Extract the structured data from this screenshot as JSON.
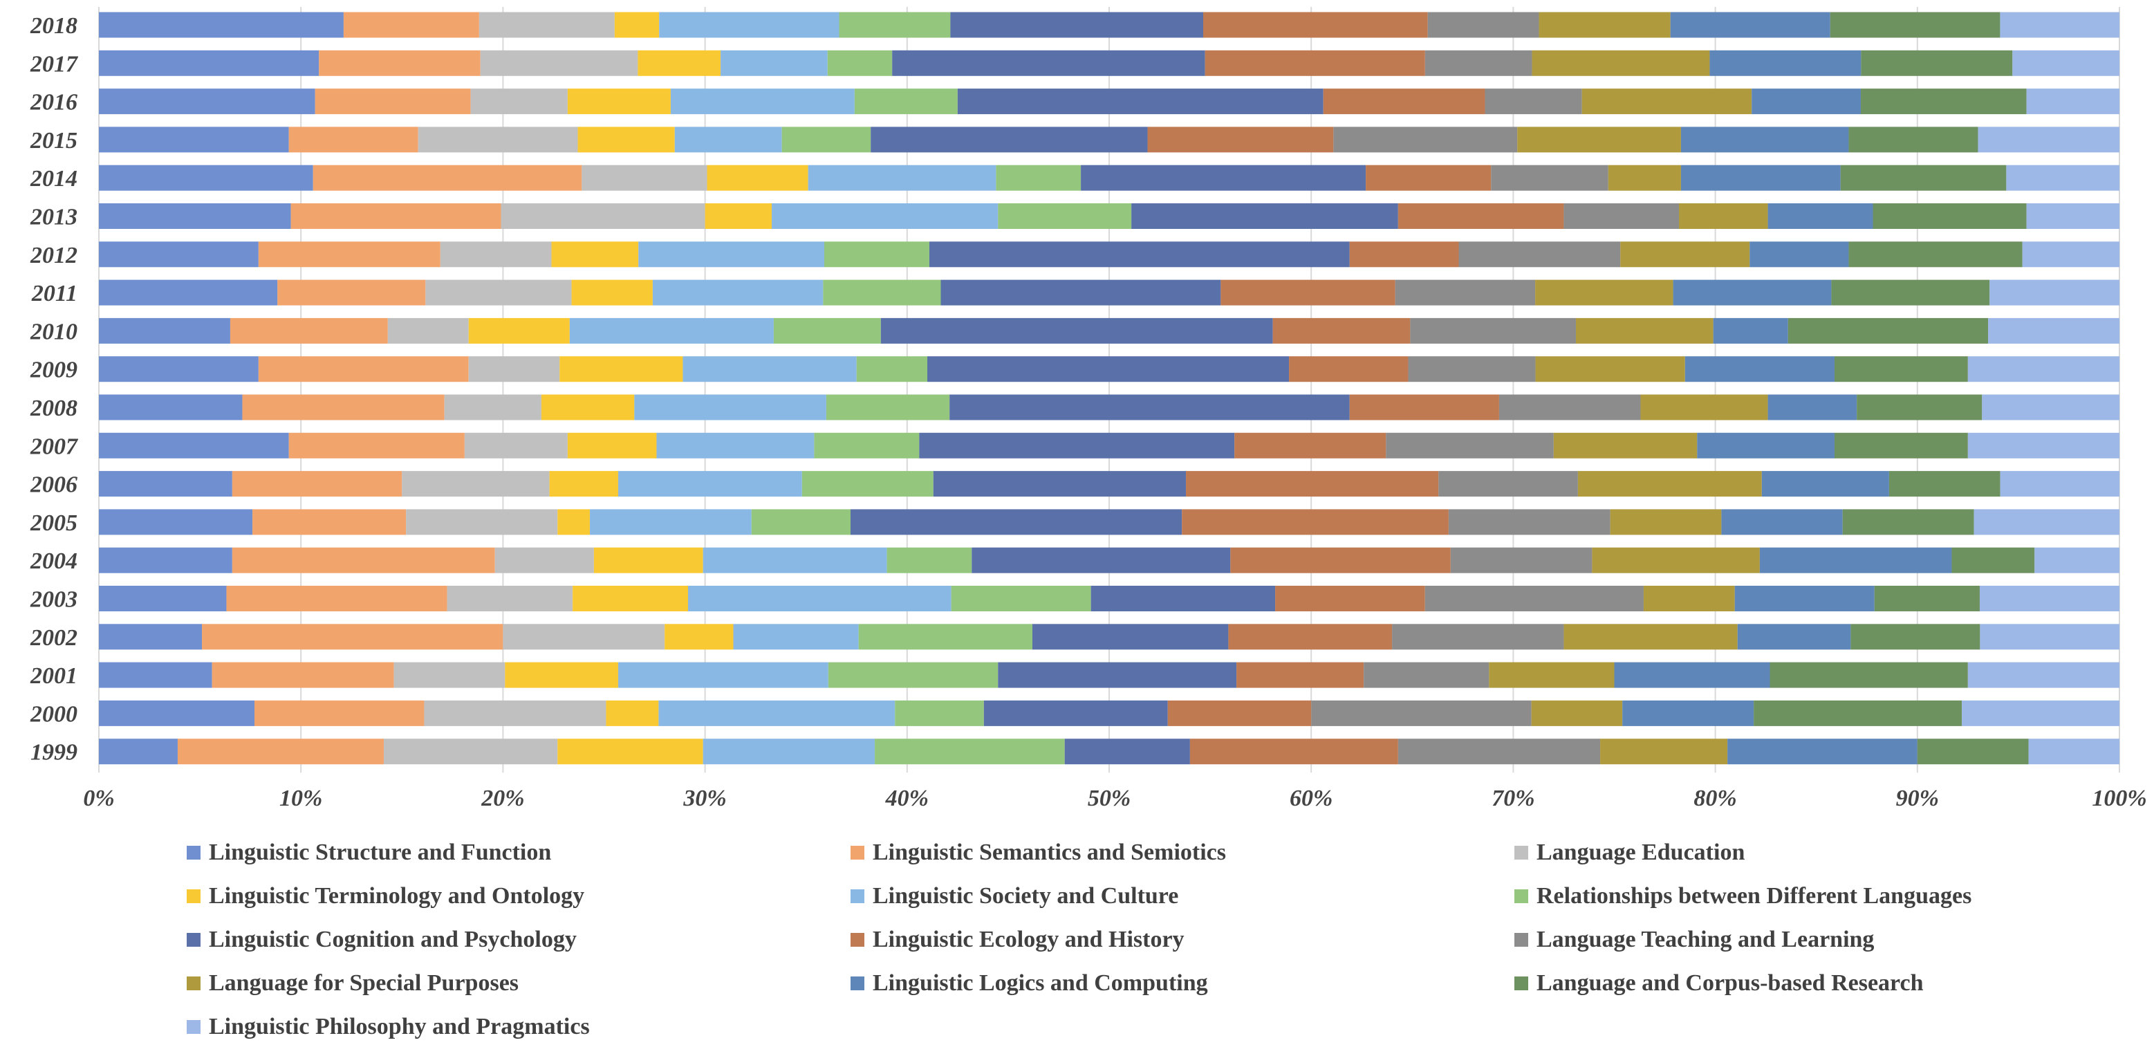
{
  "chart_data": {
    "type": "bar",
    "orientation": "horizontal",
    "stacked": "100%",
    "categories": [
      "2018",
      "2017",
      "2016",
      "2015",
      "2014",
      "2013",
      "2012",
      "2011",
      "2010",
      "2009",
      "2008",
      "2007",
      "2006",
      "2005",
      "2004",
      "2003",
      "2002",
      "2001",
      "2000",
      "1999"
    ],
    "xlim": [
      0,
      100
    ],
    "xticks": [
      "0%",
      "10%",
      "20%",
      "30%",
      "40%",
      "50%",
      "60%",
      "70%",
      "80%",
      "90%",
      "100%"
    ],
    "grid": true,
    "legend_position": "bottom",
    "series": [
      {
        "name": "Linguistic Structure and Function",
        "color": "#6f8fd0",
        "values": [
          12.1,
          10.9,
          10.7,
          9.4,
          10.6,
          9.5,
          7.9,
          8.8,
          6.5,
          7.9,
          7.1,
          9.4,
          6.6,
          7.6,
          6.6,
          6.3,
          5.1,
          5.6,
          7.7,
          3.9
        ]
      },
      {
        "name": "Linguistic Semantics and Semiotics",
        "color": "#f2a46d",
        "values": [
          6.7,
          8.0,
          7.7,
          6.4,
          13.3,
          10.4,
          9.0,
          7.3,
          7.8,
          10.4,
          10.0,
          8.7,
          8.4,
          7.6,
          13.0,
          10.9,
          14.9,
          9.0,
          8.4,
          10.2
        ]
      },
      {
        "name": "Language Education",
        "color": "#c0c0c0",
        "values": [
          6.7,
          7.8,
          4.8,
          7.9,
          6.2,
          10.1,
          5.5,
          7.2,
          4.0,
          4.5,
          4.8,
          5.1,
          7.3,
          7.5,
          4.9,
          6.2,
          8.0,
          5.5,
          9.0,
          8.6
        ]
      },
      {
        "name": "Linguistic Terminology and Ontology",
        "color": "#f9c933",
        "values": [
          2.2,
          4.1,
          5.1,
          4.8,
          5.0,
          3.3,
          4.3,
          4.0,
          5.0,
          6.1,
          4.6,
          4.4,
          3.4,
          1.6,
          5.4,
          5.7,
          3.4,
          5.6,
          2.6,
          7.2
        ]
      },
      {
        "name": "Linguistic Society and Culture",
        "color": "#8ab8e4",
        "values": [
          8.9,
          5.3,
          9.1,
          5.3,
          9.3,
          11.2,
          9.2,
          8.4,
          10.1,
          8.6,
          9.5,
          7.8,
          9.1,
          8.0,
          9.1,
          13.0,
          6.2,
          10.4,
          11.7,
          8.5
        ]
      },
      {
        "name": "Relationships between Different Languages",
        "color": "#94c77d",
        "values": [
          5.5,
          3.2,
          5.1,
          4.4,
          4.2,
          6.6,
          5.2,
          5.8,
          5.3,
          3.5,
          6.1,
          5.2,
          6.5,
          4.9,
          4.2,
          6.9,
          8.6,
          8.4,
          4.4,
          9.4
        ]
      },
      {
        "name": "Linguistic Cognition and Psychology",
        "color": "#5a70a8",
        "values": [
          12.5,
          15.5,
          18.1,
          13.7,
          14.1,
          13.2,
          20.8,
          13.8,
          19.4,
          17.9,
          19.8,
          15.6,
          12.5,
          16.4,
          12.8,
          9.1,
          9.7,
          11.8,
          9.1,
          6.2
        ]
      },
      {
        "name": "Linguistic Ecology and History",
        "color": "#c07a52",
        "values": [
          11.1,
          10.9,
          8.0,
          9.2,
          6.2,
          8.2,
          5.4,
          8.6,
          6.8,
          5.9,
          7.4,
          7.5,
          12.5,
          13.2,
          10.9,
          7.4,
          8.1,
          6.3,
          7.1,
          10.3
        ]
      },
      {
        "name": "Language Teaching and Learning",
        "color": "#8c8c8c",
        "values": [
          5.5,
          5.3,
          4.8,
          9.1,
          5.8,
          5.7,
          8.0,
          6.9,
          8.2,
          6.3,
          7.0,
          8.3,
          6.9,
          8.0,
          7.0,
          10.8,
          8.5,
          6.2,
          10.9,
          10.0
        ]
      },
      {
        "name": "Language for Special Purposes",
        "color": "#b09a3e",
        "values": [
          6.5,
          8.8,
          8.4,
          8.1,
          3.6,
          4.4,
          6.4,
          6.8,
          6.8,
          7.4,
          6.3,
          7.1,
          9.1,
          5.5,
          8.3,
          4.5,
          8.6,
          6.2,
          4.5,
          6.3
        ]
      },
      {
        "name": "Linguistic Logics and Computing",
        "color": "#5e86b8",
        "values": [
          7.9,
          7.5,
          5.4,
          8.3,
          7.9,
          5.2,
          4.9,
          7.8,
          3.7,
          7.4,
          4.4,
          6.8,
          6.3,
          6.0,
          9.5,
          6.9,
          5.6,
          7.7,
          6.5,
          9.4
        ]
      },
      {
        "name": "Language and Corpus-based Research",
        "color": "#6e9160",
        "values": [
          8.4,
          7.5,
          8.2,
          6.4,
          8.2,
          7.6,
          8.6,
          7.8,
          9.9,
          6.6,
          6.2,
          6.6,
          5.5,
          6.5,
          4.1,
          5.2,
          6.4,
          9.8,
          10.3,
          5.5
        ]
      },
      {
        "name": "Linguistic Philosophy and Pragmatics",
        "color": "#9db8e6",
        "values": [
          5.9,
          5.3,
          4.6,
          7.0,
          5.6,
          4.6,
          4.8,
          6.4,
          6.5,
          7.5,
          6.8,
          7.5,
          5.9,
          7.2,
          4.2,
          6.9,
          6.9,
          7.5,
          7.8,
          4.5
        ]
      }
    ]
  }
}
